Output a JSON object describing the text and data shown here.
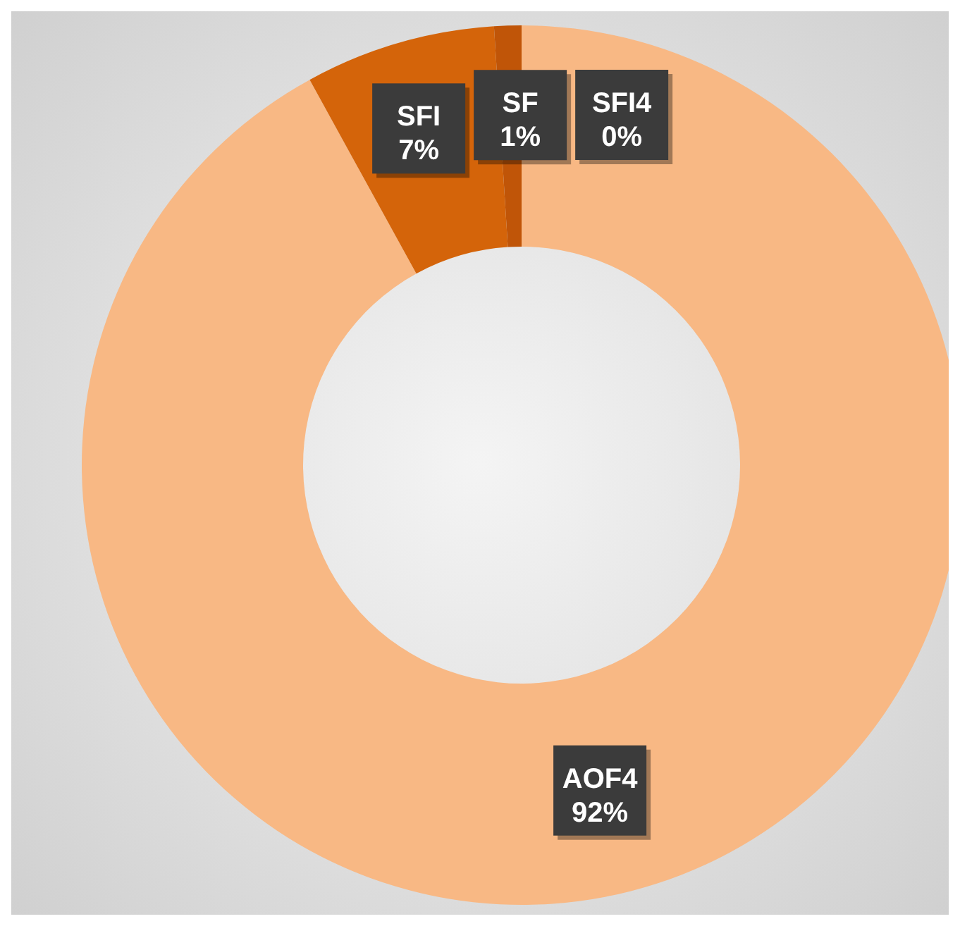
{
  "chart_data": {
    "type": "donut",
    "categories": [
      "AOF4",
      "SFI",
      "SF",
      "SFI4"
    ],
    "values": [
      92,
      7,
      1,
      0
    ],
    "colors": [
      "#f8b884",
      "#d4640a",
      "#c05508",
      "#8f4006"
    ],
    "value_labels": [
      "92%",
      "7%",
      "1%",
      "0%"
    ]
  }
}
